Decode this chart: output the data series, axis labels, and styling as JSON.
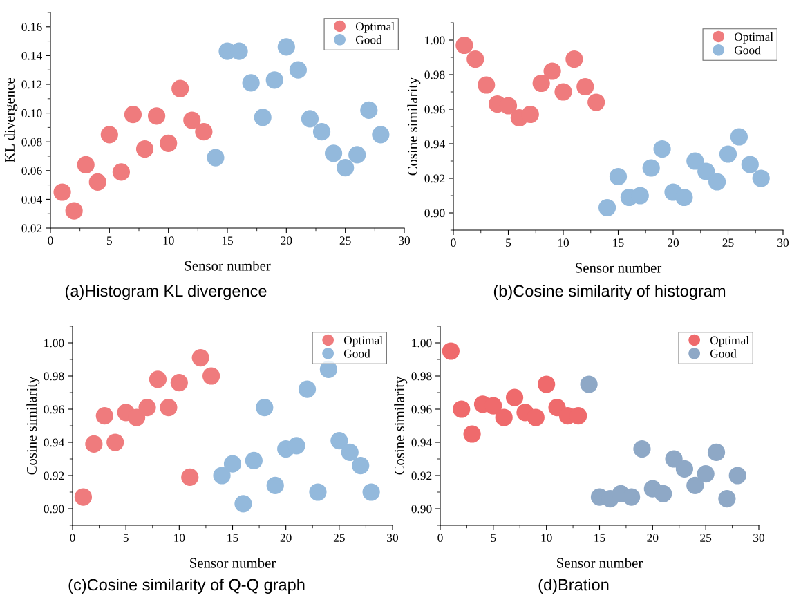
{
  "chart_data": [
    {
      "type": "scatter",
      "xlabel": "Sensor number",
      "ylabel": "KL divergence",
      "annotations": [
        "(a)Histogram KL divergence"
      ],
      "xlim": [
        0,
        30
      ],
      "xticks": [
        0,
        5,
        10,
        15,
        20,
        25,
        30
      ],
      "ylim": [
        0.02,
        0.17
      ],
      "yticks": [
        0.02,
        0.04,
        0.06,
        0.08,
        {
          "value": 0.1,
          "label": "0.10"
        },
        0.12,
        0.14,
        0.16
      ],
      "marker": "circle",
      "legend": "top right",
      "series": [
        {
          "name": "Optimal",
          "color": "#ef7b7d",
          "x": [
            1,
            2,
            3,
            4,
            5,
            6,
            7,
            8,
            9,
            10,
            11,
            12,
            13
          ],
          "values": [
            0.045,
            0.032,
            0.064,
            0.052,
            0.085,
            0.059,
            0.099,
            0.075,
            0.098,
            0.079,
            0.117,
            0.095,
            0.087
          ]
        },
        {
          "name": "Good",
          "color": "#93b9dc",
          "x": [
            14,
            15,
            16,
            17,
            18,
            19,
            20,
            21,
            22,
            23,
            24,
            25,
            26,
            27,
            28
          ],
          "values": [
            0.069,
            0.143,
            0.143,
            0.121,
            0.097,
            0.123,
            0.146,
            0.13,
            0.096,
            0.087,
            0.072,
            0.062,
            0.071,
            0.102,
            0.085
          ]
        }
      ]
    },
    {
      "type": "scatter",
      "xlabel": "Sensor number",
      "ylabel": "Cosine similarity",
      "annotations": [
        "(b)Cosine similarity of histogram"
      ],
      "xlim": [
        0,
        30
      ],
      "xticks": [
        0,
        5,
        10,
        15,
        20,
        25,
        30
      ],
      "ylim": [
        0.89,
        1.01
      ],
      "yticks": [
        {
          "value": 0.9,
          "label": "0.90"
        },
        0.92,
        0.94,
        0.96,
        0.98,
        {
          "value": 1.0,
          "label": "1.00"
        }
      ],
      "marker": "circle",
      "legend": "top right",
      "series": [
        {
          "name": "Optimal",
          "color": "#ef7b7d",
          "x": [
            1,
            2,
            3,
            4,
            5,
            6,
            7,
            8,
            9,
            10,
            11,
            12,
            13
          ],
          "values": [
            0.997,
            0.989,
            0.974,
            0.963,
            0.962,
            0.955,
            0.957,
            0.975,
            0.982,
            0.97,
            0.989,
            0.973,
            0.964
          ]
        },
        {
          "name": "Good",
          "color": "#93b9dc",
          "x": [
            14,
            15,
            16,
            17,
            18,
            19,
            20,
            21,
            22,
            23,
            24,
            25,
            26,
            27,
            28
          ],
          "values": [
            0.903,
            0.921,
            0.909,
            0.91,
            0.926,
            0.937,
            0.912,
            0.909,
            0.93,
            0.924,
            0.918,
            0.934,
            0.944,
            0.928,
            0.92
          ]
        }
      ]
    },
    {
      "type": "scatter",
      "xlabel": "Sensor number",
      "ylabel": "Cosine similarity",
      "annotations": [
        "(c)Cosine similarity of Q-Q graph"
      ],
      "xlim": [
        0,
        30
      ],
      "xticks": [
        0,
        5,
        10,
        15,
        20,
        25,
        30
      ],
      "ylim": [
        0.89,
        1.01
      ],
      "yticks": [
        {
          "value": 0.9,
          "label": "0.90"
        },
        0.92,
        0.94,
        0.96,
        0.98,
        {
          "value": 1.0,
          "label": "1.00"
        }
      ],
      "marker": "circle",
      "legend": "top right",
      "series": [
        {
          "name": "Optimal",
          "color": "#ef7b7d",
          "x": [
            1,
            2,
            3,
            4,
            5,
            6,
            7,
            8,
            9,
            10,
            11,
            12,
            13
          ],
          "values": [
            0.907,
            0.939,
            0.956,
            0.94,
            0.958,
            0.955,
            0.961,
            0.978,
            0.961,
            0.976,
            0.919,
            0.991,
            0.98
          ]
        },
        {
          "name": "Good",
          "color": "#93b9dc",
          "x": [
            14,
            15,
            16,
            17,
            18,
            19,
            20,
            21,
            22,
            23,
            24,
            25,
            26,
            27,
            28
          ],
          "values": [
            0.92,
            0.927,
            0.903,
            0.929,
            0.961,
            0.914,
            0.936,
            0.938,
            0.972,
            0.91,
            0.984,
            0.941,
            0.934,
            0.926,
            0.91
          ]
        }
      ]
    },
    {
      "type": "scatter",
      "xlabel": "Sensor number",
      "ylabel": "Cosine similarity",
      "annotations": [
        "(d)Bration"
      ],
      "xlim": [
        0,
        30
      ],
      "xticks": [
        0,
        5,
        10,
        15,
        20,
        25,
        30
      ],
      "ylim": [
        0.89,
        1.01
      ],
      "yticks": [
        {
          "value": 0.9,
          "label": "0.90"
        },
        0.92,
        0.94,
        0.96,
        0.98,
        {
          "value": 1.0,
          "label": "1.00"
        }
      ],
      "marker": "circle",
      "legend": "top right",
      "series": [
        {
          "name": "Optimal",
          "color": "#ef6a6c",
          "x": [
            1,
            2,
            3,
            4,
            5,
            6,
            7,
            8,
            9,
            10,
            11,
            12,
            13
          ],
          "values": [
            0.995,
            0.96,
            0.945,
            0.963,
            0.962,
            0.955,
            0.967,
            0.958,
            0.955,
            0.975,
            0.961,
            0.956,
            0.956
          ]
        },
        {
          "name": "Good",
          "color": "#8ea8c6",
          "x": [
            14,
            15,
            16,
            17,
            18,
            19,
            20,
            21,
            22,
            23,
            24,
            25,
            26,
            27,
            28
          ],
          "values": [
            0.975,
            0.907,
            0.906,
            0.909,
            0.907,
            0.936,
            0.912,
            0.909,
            0.93,
            0.924,
            0.914,
            0.921,
            0.934,
            0.906,
            0.92
          ]
        }
      ]
    }
  ]
}
